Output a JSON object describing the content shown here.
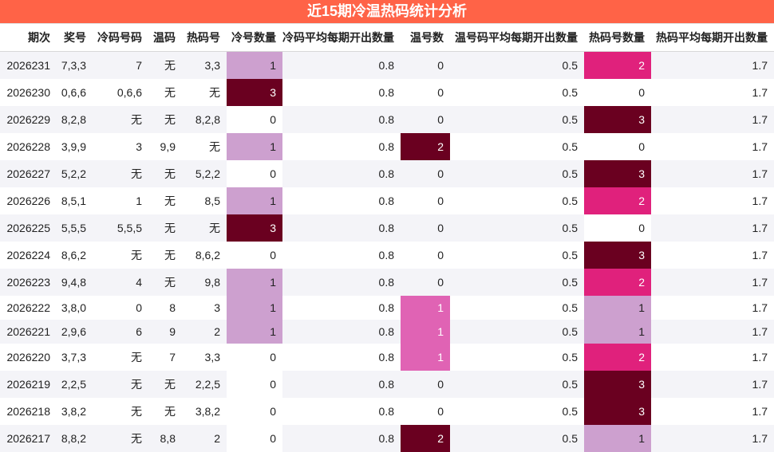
{
  "title": "近15期冷温热码统计分析",
  "columns": [
    "期次",
    "奖号",
    "冷码号码",
    "温码",
    "热码号",
    "冷号数量",
    "冷码平均每期开出数量",
    "温号数",
    "温号码平均每期开出数量",
    "热码号数量",
    "热码平均每期开出数量"
  ],
  "rows": [
    [
      "2026231",
      "7,3,3",
      "7",
      "无",
      "3,3",
      "1",
      "0.8",
      "0",
      "0.5",
      "2",
      "1.7"
    ],
    [
      "2026230",
      "0,6,6",
      "0,6,6",
      "无",
      "无",
      "3",
      "0.8",
      "0",
      "0.5",
      "0",
      "1.7"
    ],
    [
      "2026229",
      "8,2,8",
      "无",
      "无",
      "8,2,8",
      "0",
      "0.8",
      "0",
      "0.5",
      "3",
      "1.7"
    ],
    [
      "2026228",
      "3,9,9",
      "3",
      "9,9",
      "无",
      "1",
      "0.8",
      "2",
      "0.5",
      "0",
      "1.7"
    ],
    [
      "2026227",
      "5,2,2",
      "无",
      "无",
      "5,2,2",
      "0",
      "0.8",
      "0",
      "0.5",
      "3",
      "1.7"
    ],
    [
      "2026226",
      "8,5,1",
      "1",
      "无",
      "8,5",
      "1",
      "0.8",
      "0",
      "0.5",
      "2",
      "1.7"
    ],
    [
      "2026225",
      "5,5,5",
      "5,5,5",
      "无",
      "无",
      "3",
      "0.8",
      "0",
      "0.5",
      "0",
      "1.7"
    ],
    [
      "2026224",
      "8,6,2",
      "无",
      "无",
      "8,6,2",
      "0",
      "0.8",
      "0",
      "0.5",
      "3",
      "1.7"
    ],
    [
      "2026223",
      "9,4,8",
      "4",
      "无",
      "9,8",
      "1",
      "0.8",
      "0",
      "0.5",
      "2",
      "1.7"
    ],
    [
      "2026222",
      "3,8,0",
      "0",
      "8",
      "3",
      "1",
      "0.8",
      "1",
      "0.5",
      "1",
      "1.7"
    ],
    [
      "2026221",
      "2,9,6",
      "6",
      "9",
      "2",
      "1",
      "0.8",
      "1",
      "0.5",
      "1",
      "1.7"
    ],
    [
      "2026220",
      "3,7,3",
      "无",
      "7",
      "3,3",
      "0",
      "0.8",
      "1",
      "0.5",
      "2",
      "1.7"
    ],
    [
      "2026219",
      "2,2,5",
      "无",
      "无",
      "2,2,5",
      "0",
      "0.8",
      "0",
      "0.5",
      "3",
      "1.7"
    ],
    [
      "2026218",
      "3,8,2",
      "无",
      "无",
      "3,8,2",
      "0",
      "0.8",
      "0",
      "0.5",
      "3",
      "1.7"
    ],
    [
      "2026217",
      "8,8,2",
      "无",
      "8,8",
      "2",
      "0",
      "0.8",
      "2",
      "0.5",
      "1",
      "1.7"
    ]
  ],
  "colors": {
    "title_bg": "#ff6347",
    "count_1": "#cda0cf",
    "count_2": "#e0217c",
    "count_3": "#6a0020",
    "warm_1": "#e063b4"
  }
}
